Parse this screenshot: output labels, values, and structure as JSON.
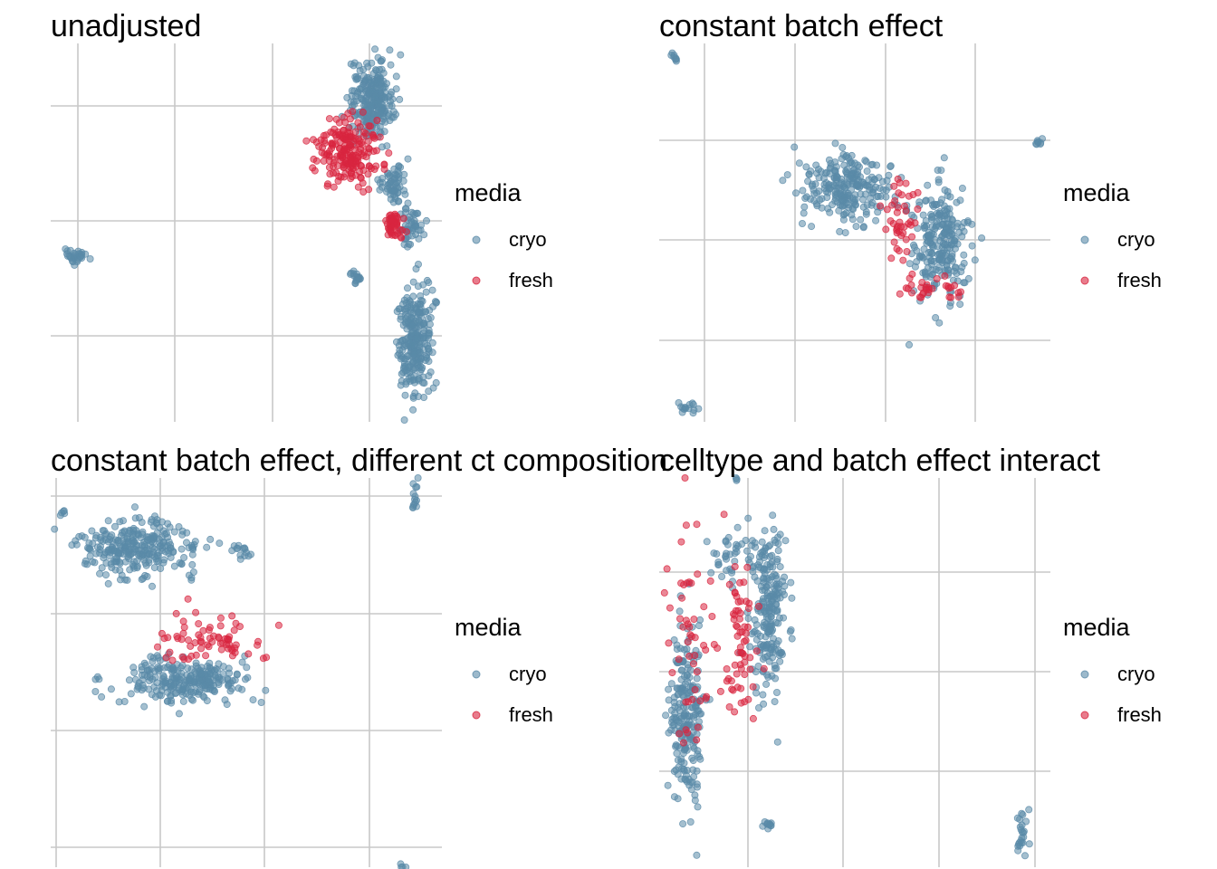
{
  "legend": {
    "title": "media",
    "items": [
      {
        "label": "cryo",
        "color": "#5a8aa8"
      },
      {
        "label": "fresh",
        "color": "#d8253f"
      }
    ]
  },
  "chart_data": [
    {
      "type": "scatter",
      "title": "unadjusted",
      "xlabel": "",
      "ylabel": "",
      "grid": true,
      "legend_placement": "right",
      "series": [
        {
          "name": "cryo",
          "color": "#5a8aa8",
          "clusters": [
            {
              "cx": 0.82,
              "cy": 0.85,
              "rx": 0.05,
              "ry": 0.09,
              "n": 260
            },
            {
              "cx": 0.88,
              "cy": 0.63,
              "rx": 0.03,
              "ry": 0.05,
              "n": 60
            },
            {
              "cx": 0.92,
              "cy": 0.52,
              "rx": 0.03,
              "ry": 0.05,
              "n": 50
            },
            {
              "cx": 0.93,
              "cy": 0.22,
              "rx": 0.04,
              "ry": 0.13,
              "n": 260
            },
            {
              "cx": 0.06,
              "cy": 0.44,
              "rx": 0.03,
              "ry": 0.02,
              "n": 30
            },
            {
              "cx": 0.78,
              "cy": 0.38,
              "rx": 0.015,
              "ry": 0.015,
              "n": 18
            }
          ]
        },
        {
          "name": "fresh",
          "color": "#d8253f",
          "clusters": [
            {
              "cx": 0.76,
              "cy": 0.71,
              "rx": 0.07,
              "ry": 0.08,
              "n": 200
            },
            {
              "cx": 0.88,
              "cy": 0.52,
              "rx": 0.03,
              "ry": 0.03,
              "n": 50
            }
          ]
        }
      ]
    },
    {
      "type": "scatter",
      "title": "constant batch effect",
      "xlabel": "",
      "ylabel": "",
      "grid": true,
      "legend_placement": "right",
      "series": [
        {
          "name": "cryo",
          "color": "#5a8aa8",
          "clusters": [
            {
              "cx": 0.48,
              "cy": 0.62,
              "rx": 0.1,
              "ry": 0.08,
              "n": 240
            },
            {
              "cx": 0.72,
              "cy": 0.48,
              "rx": 0.06,
              "ry": 0.14,
              "n": 240
            },
            {
              "cx": 0.04,
              "cy": 0.96,
              "rx": 0.01,
              "ry": 0.01,
              "n": 8
            },
            {
              "cx": 0.97,
              "cy": 0.74,
              "rx": 0.01,
              "ry": 0.01,
              "n": 8
            },
            {
              "cx": 0.08,
              "cy": 0.04,
              "rx": 0.03,
              "ry": 0.01,
              "n": 14
            }
          ]
        },
        {
          "name": "fresh",
          "color": "#d8253f",
          "clusters": [
            {
              "cx": 0.62,
              "cy": 0.52,
              "rx": 0.04,
              "ry": 0.12,
              "n": 45
            },
            {
              "cx": 0.7,
              "cy": 0.35,
              "rx": 0.08,
              "ry": 0.03,
              "n": 30
            }
          ]
        }
      ]
    },
    {
      "type": "scatter",
      "title": "constant batch effect, different ct composition",
      "xlabel": "",
      "ylabel": "",
      "grid": true,
      "legend_placement": "right",
      "series": [
        {
          "name": "cryo",
          "color": "#5a8aa8",
          "clusters": [
            {
              "cx": 0.22,
              "cy": 0.82,
              "rx": 0.14,
              "ry": 0.07,
              "n": 280
            },
            {
              "cx": 0.35,
              "cy": 0.48,
              "rx": 0.15,
              "ry": 0.05,
              "n": 260
            },
            {
              "cx": 0.93,
              "cy": 0.95,
              "rx": 0.01,
              "ry": 0.04,
              "n": 14
            },
            {
              "cx": 0.49,
              "cy": 0.81,
              "rx": 0.02,
              "ry": 0.02,
              "n": 14
            },
            {
              "cx": 0.03,
              "cy": 0.91,
              "rx": 0.01,
              "ry": 0.01,
              "n": 5
            },
            {
              "cx": 0.9,
              "cy": 0.0,
              "rx": 0.01,
              "ry": 0.01,
              "n": 4
            }
          ]
        },
        {
          "name": "fresh",
          "color": "#d8253f",
          "clusters": [
            {
              "cx": 0.4,
              "cy": 0.58,
              "rx": 0.12,
              "ry": 0.06,
              "n": 70
            }
          ]
        }
      ]
    },
    {
      "type": "scatter",
      "title": "celltype and batch effect interact",
      "xlabel": "",
      "ylabel": "",
      "grid": true,
      "legend_placement": "right",
      "series": [
        {
          "name": "cryo",
          "color": "#5a8aa8",
          "clusters": [
            {
              "cx": 0.07,
              "cy": 0.4,
              "rx": 0.04,
              "ry": 0.22,
              "n": 220
            },
            {
              "cx": 0.28,
              "cy": 0.65,
              "rx": 0.04,
              "ry": 0.2,
              "n": 220
            },
            {
              "cx": 0.2,
              "cy": 0.8,
              "rx": 0.06,
              "ry": 0.06,
              "n": 40
            },
            {
              "cx": 0.2,
              "cy": 1.0,
              "rx": 0.005,
              "ry": 0.005,
              "n": 3
            },
            {
              "cx": 0.28,
              "cy": 0.11,
              "rx": 0.015,
              "ry": 0.01,
              "n": 12
            },
            {
              "cx": 0.93,
              "cy": 0.09,
              "rx": 0.015,
              "ry": 0.05,
              "n": 24
            }
          ]
        },
        {
          "name": "fresh",
          "color": "#d8253f",
          "clusters": [
            {
              "cx": 0.2,
              "cy": 0.55,
              "rx": 0.04,
              "ry": 0.22,
              "n": 65
            },
            {
              "cx": 0.08,
              "cy": 0.55,
              "rx": 0.05,
              "ry": 0.28,
              "n": 50
            }
          ]
        }
      ]
    }
  ]
}
